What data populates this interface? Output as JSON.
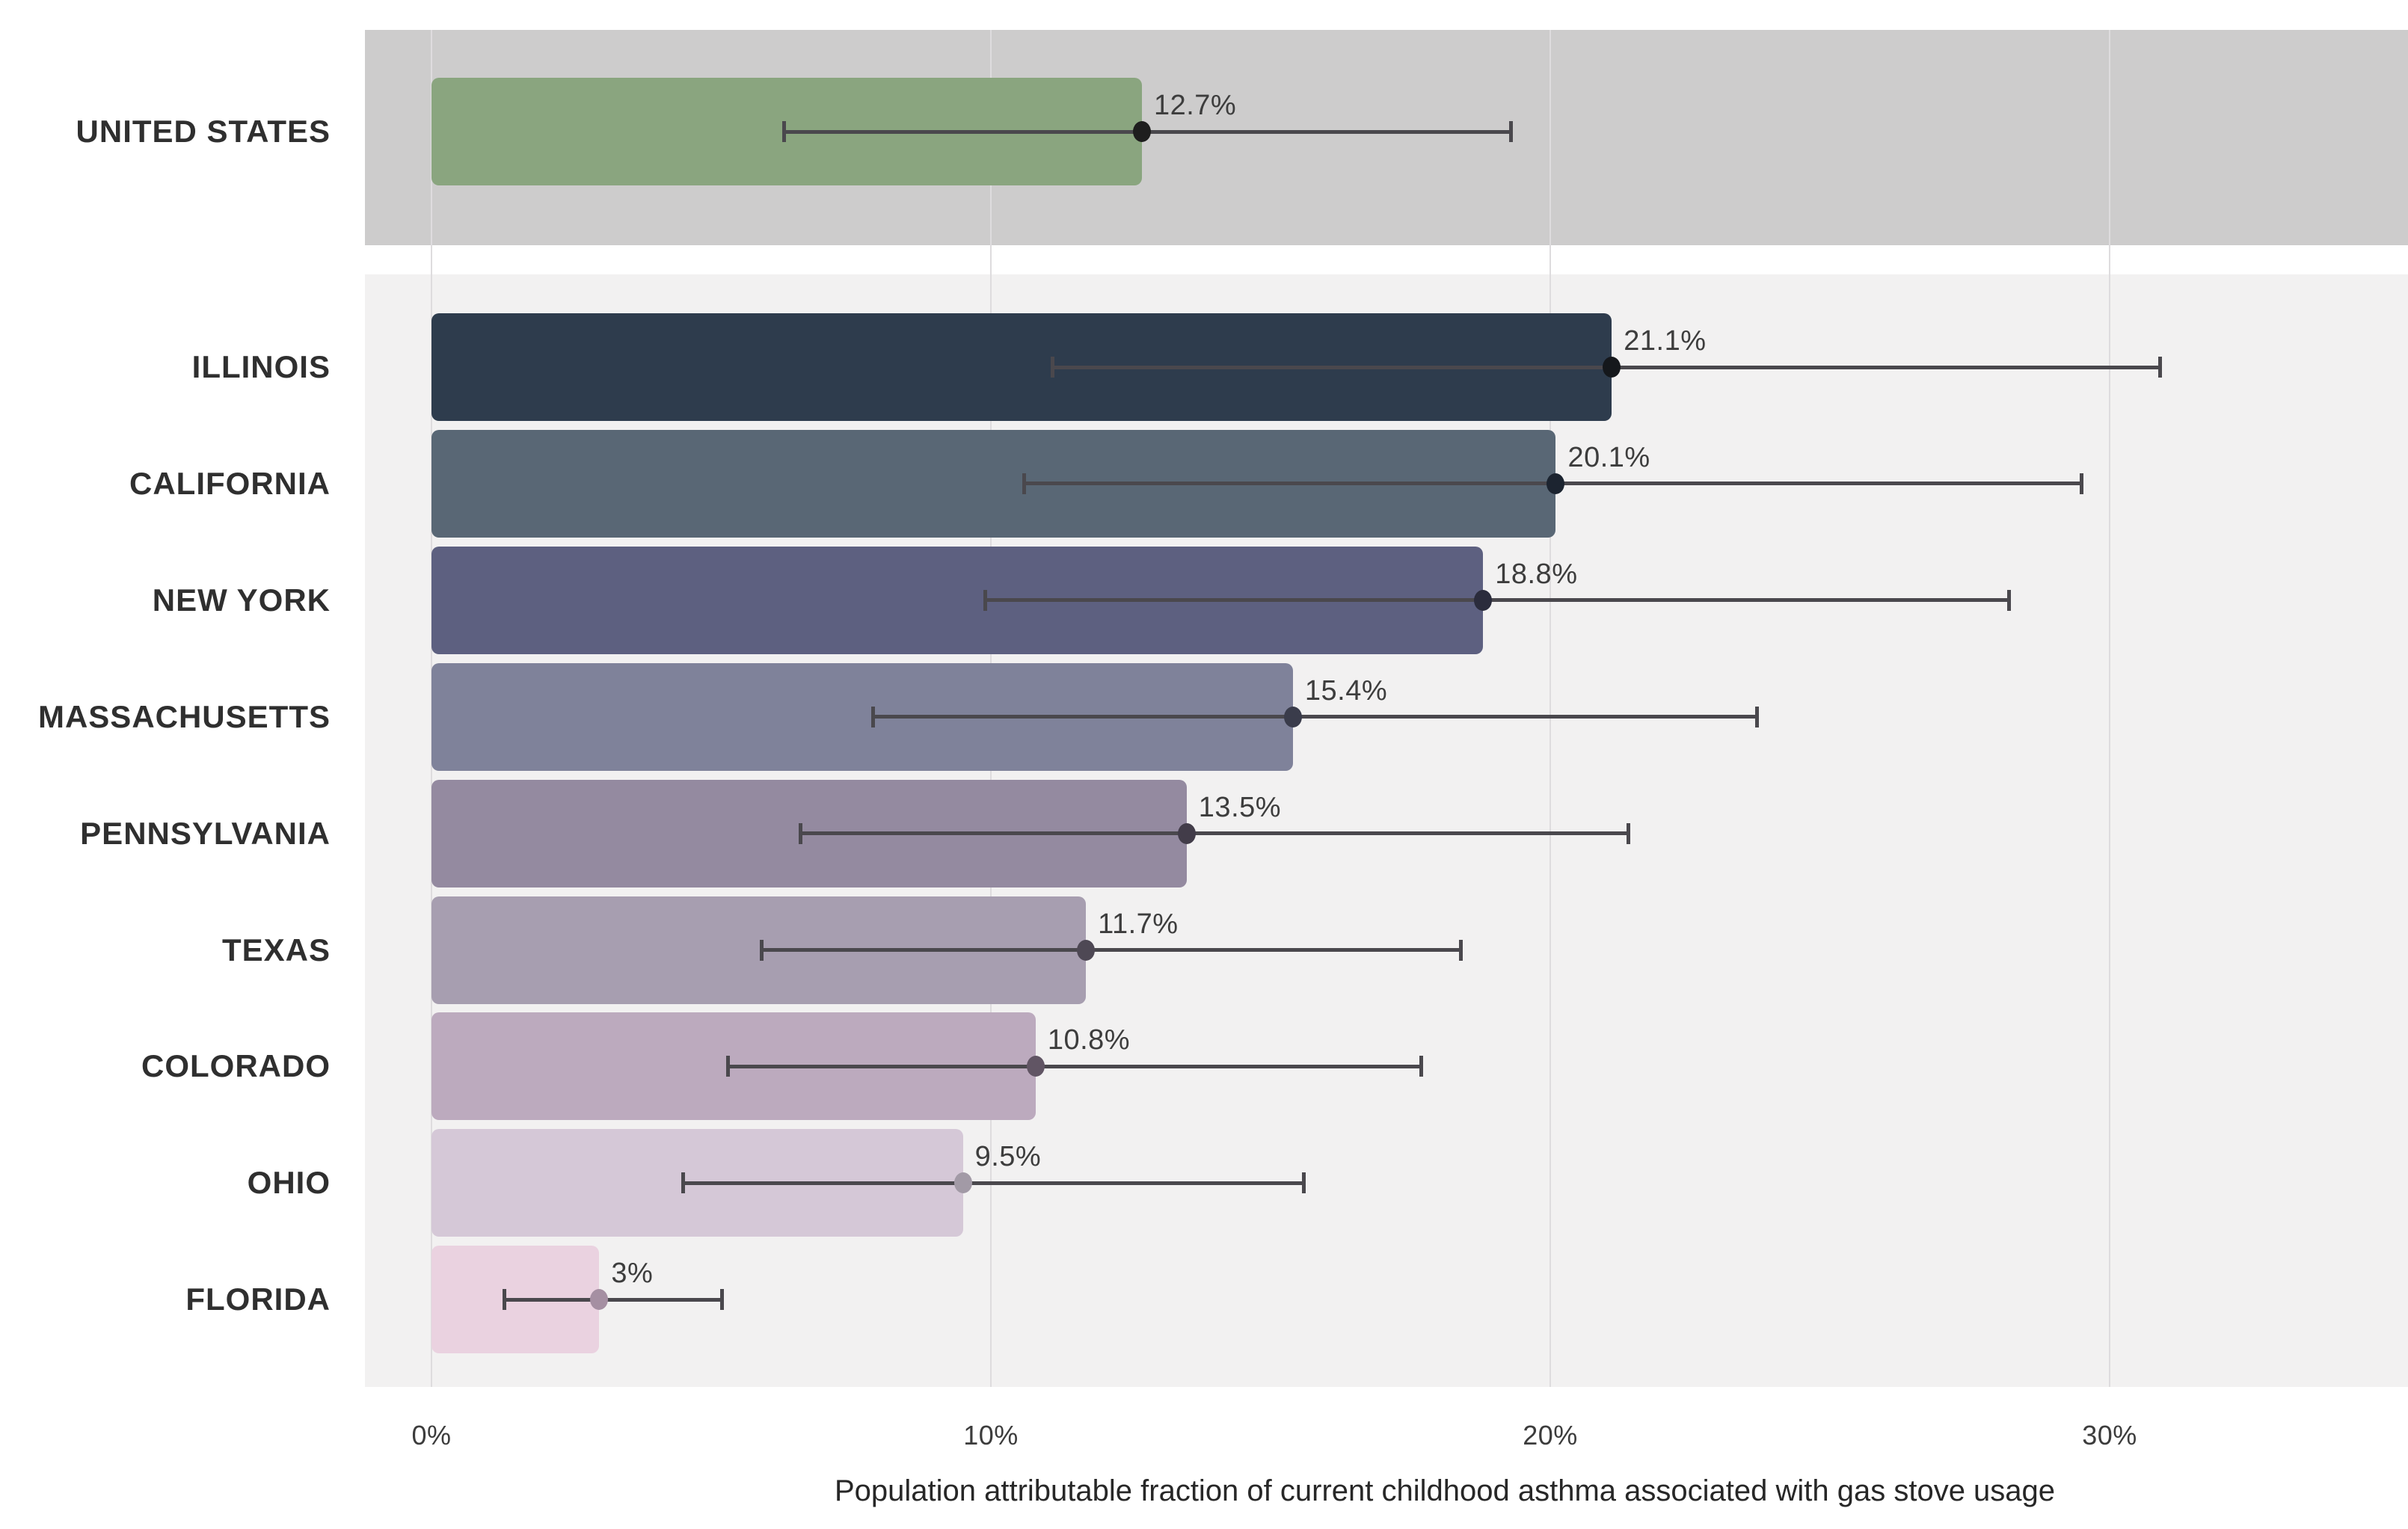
{
  "chart_data": {
    "type": "bar",
    "orientation": "horizontal",
    "title": "",
    "xlabel": "Population attributable fraction of current childhood asthma associated with gas stove usage",
    "ylabel": "",
    "xlim": [
      0,
      35.4
    ],
    "grid": true,
    "x_ticks": [
      {
        "label": "0%",
        "value": 0
      },
      {
        "label": "10%",
        "value": 10
      },
      {
        "label": "20%",
        "value": 20
      },
      {
        "label": "30%",
        "value": 30
      }
    ],
    "groups": [
      {
        "name": "national",
        "background": "#cdcccc"
      },
      {
        "name": "states",
        "background": "#f2f1f1"
      }
    ],
    "rows": [
      {
        "label": "UNITED STATES",
        "value": 12.7,
        "value_label": "12.7%",
        "ci_low": 6.3,
        "ci_high": 19.3,
        "bar_color": "#8aa57f",
        "dot_color": "#1e1e1e",
        "group": "national"
      },
      {
        "label": "ILLINOIS",
        "value": 21.1,
        "value_label": "21.1%",
        "ci_low": 11.1,
        "ci_high": 30.9,
        "bar_color": "#2e3c4d",
        "dot_color": "#15181c",
        "group": "states"
      },
      {
        "label": "CALIFORNIA",
        "value": 20.1,
        "value_label": "20.1%",
        "ci_low": 10.6,
        "ci_high": 29.5,
        "bar_color": "#596775",
        "dot_color": "#1c2430",
        "group": "states"
      },
      {
        "label": "NEW YORK",
        "value": 18.8,
        "value_label": "18.8%",
        "ci_low": 9.9,
        "ci_high": 28.2,
        "bar_color": "#5d6080",
        "dot_color": "#2b2c3c",
        "group": "states"
      },
      {
        "label": "MASSACHUSETTS",
        "value": 15.4,
        "value_label": "15.4%",
        "ci_low": 7.9,
        "ci_high": 23.7,
        "bar_color": "#7f829a",
        "dot_color": "#3a3c4b",
        "group": "states"
      },
      {
        "label": "PENNSYLVANIA",
        "value": 13.5,
        "value_label": "13.5%",
        "ci_low": 6.6,
        "ci_high": 21.4,
        "bar_color": "#948aa0",
        "dot_color": "#423c49",
        "group": "states"
      },
      {
        "label": "TEXAS",
        "value": 11.7,
        "value_label": "11.7%",
        "ci_low": 5.9,
        "ci_high": 18.4,
        "bar_color": "#a79eb0",
        "dot_color": "#4e4854",
        "group": "states"
      },
      {
        "label": "COLORADO",
        "value": 10.8,
        "value_label": "10.8%",
        "ci_low": 5.3,
        "ci_high": 17.7,
        "bar_color": "#bcaabe",
        "dot_color": "#615564",
        "group": "states"
      },
      {
        "label": "OHIO",
        "value": 9.5,
        "value_label": "9.5%",
        "ci_low": 4.5,
        "ci_high": 15.6,
        "bar_color": "#d5c8d7",
        "dot_color": "#a29aa6",
        "group": "states"
      },
      {
        "label": "FLORIDA",
        "value": 3,
        "value_label": "3%",
        "ci_low": 1.3,
        "ci_high": 5.2,
        "bar_color": "#ead2e0",
        "dot_color": "#a58fa2",
        "group": "states"
      }
    ]
  },
  "styles": {
    "page_background": "#ffffff",
    "national_band": "#cdcccc",
    "states_band": "#f2f1f1",
    "gridline": "#dedcde",
    "error_bar": "#4a484d",
    "state_label": "#2f2f2f",
    "value_label": "#3d3d3d",
    "tick_label": "#3c3c3c",
    "axis_title": "#272727"
  }
}
